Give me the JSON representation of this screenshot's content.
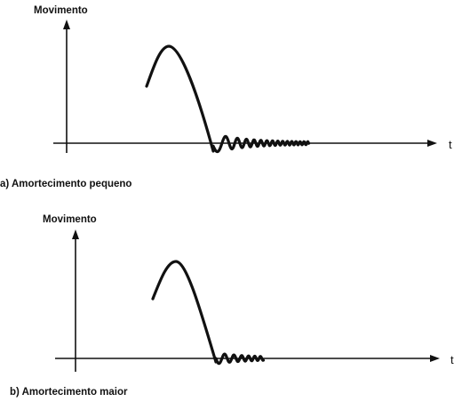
{
  "panels": [
    {
      "id": "a",
      "y_axis_label": "Movimento",
      "x_axis_label": "t",
      "caption": "a) Amortecimento pequeno",
      "damping": "small"
    },
    {
      "id": "b",
      "y_axis_label": "Movimento",
      "x_axis_label": "t",
      "caption": "b) Amortecimento maior",
      "damping": "larger"
    }
  ],
  "colors": {
    "ink": "#111111",
    "background": "#ffffff"
  }
}
